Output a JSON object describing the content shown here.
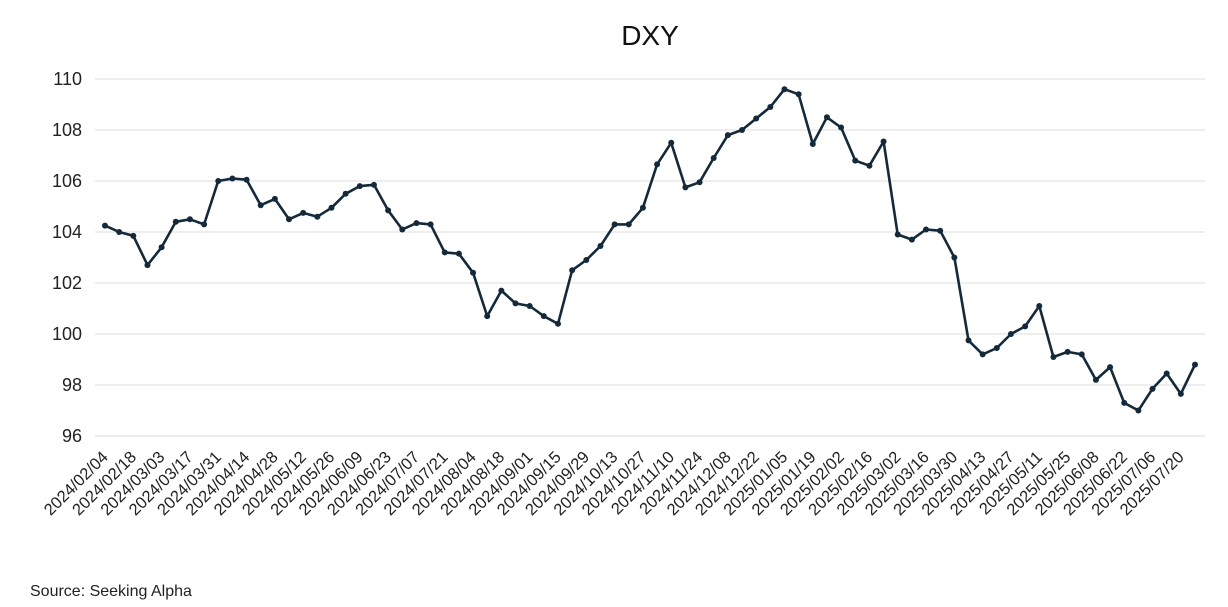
{
  "chart_data": {
    "type": "line",
    "title": "DXY",
    "source": "Source: Seeking Alpha",
    "xlabel": "",
    "ylabel": "",
    "ylim": [
      96,
      110
    ],
    "yticks": [
      96,
      98,
      100,
      102,
      104,
      106,
      108,
      110
    ],
    "grid": true,
    "line_color": "#14293a",
    "x": [
      "2024/02/04",
      "2024/02/11",
      "2024/02/18",
      "2024/02/25",
      "2024/03/03",
      "2024/03/10",
      "2024/03/17",
      "2024/03/24",
      "2024/03/31",
      "2024/04/07",
      "2024/04/14",
      "2024/04/21",
      "2024/04/28",
      "2024/05/05",
      "2024/05/12",
      "2024/05/19",
      "2024/05/26",
      "2024/06/02",
      "2024/06/09",
      "2024/06/16",
      "2024/06/23",
      "2024/06/30",
      "2024/07/07",
      "2024/07/14",
      "2024/07/21",
      "2024/07/28",
      "2024/08/04",
      "2024/08/11",
      "2024/08/18",
      "2024/08/25",
      "2024/09/01",
      "2024/09/08",
      "2024/09/15",
      "2024/09/22",
      "2024/09/29",
      "2024/10/06",
      "2024/10/13",
      "2024/10/20",
      "2024/10/27",
      "2024/11/03",
      "2024/11/10",
      "2024/11/17",
      "2024/11/24",
      "2024/12/01",
      "2024/12/08",
      "2024/12/15",
      "2024/12/22",
      "2024/12/29",
      "2025/01/05",
      "2025/01/12",
      "2025/01/19",
      "2025/01/26",
      "2025/02/02",
      "2025/02/09",
      "2025/02/16",
      "2025/02/23",
      "2025/03/02",
      "2025/03/09",
      "2025/03/16",
      "2025/03/23",
      "2025/03/30",
      "2025/04/06",
      "2025/04/13",
      "2025/04/20",
      "2025/04/27",
      "2025/05/04",
      "2025/05/11",
      "2025/05/18",
      "2025/05/25",
      "2025/06/01",
      "2025/06/08",
      "2025/06/15",
      "2025/06/22",
      "2025/06/29",
      "2025/07/06",
      "2025/07/13",
      "2025/07/20",
      "2025/07/27"
    ],
    "values": [
      104.25,
      104.0,
      103.85,
      102.7,
      103.4,
      104.4,
      104.5,
      104.3,
      106.0,
      106.1,
      106.05,
      105.05,
      105.3,
      104.5,
      104.75,
      104.6,
      104.95,
      105.5,
      105.8,
      105.85,
      104.85,
      104.1,
      104.35,
      104.3,
      103.2,
      103.15,
      102.4,
      100.7,
      101.7,
      101.2,
      101.1,
      100.7,
      100.4,
      102.5,
      102.9,
      103.45,
      104.3,
      104.3,
      104.95,
      106.65,
      107.5,
      105.75,
      105.95,
      106.9,
      107.8,
      108.0,
      108.45,
      108.9,
      109.6,
      109.4,
      107.45,
      108.5,
      108.1,
      106.8,
      106.6,
      107.55,
      103.9,
      103.7,
      104.1,
      104.05,
      103.0,
      99.75,
      99.2,
      99.45,
      100.0,
      100.3,
      101.1,
      99.1,
      99.3,
      99.2,
      98.2,
      98.7,
      97.3,
      97.0,
      97.85,
      98.45,
      97.65,
      98.8
    ],
    "xtick_labels": [
      "2024/02/04",
      "2024/02/18",
      "2024/03/03",
      "2024/03/17",
      "2024/03/31",
      "2024/04/14",
      "2024/04/28",
      "2024/05/12",
      "2024/05/26",
      "2024/06/09",
      "2024/06/23",
      "2024/07/07",
      "2024/07/21",
      "2024/08/04",
      "2024/08/18",
      "2024/09/01",
      "2024/09/15",
      "2024/09/29",
      "2024/10/13",
      "2024/10/27",
      "2024/11/10",
      "2024/11/24",
      "2024/12/08",
      "2024/12/22",
      "2025/01/05",
      "2025/01/19",
      "2025/02/02",
      "2025/02/16",
      "2025/03/02",
      "2025/03/16",
      "2025/03/30",
      "2025/04/13",
      "2025/04/27",
      "2025/05/11",
      "2025/05/25",
      "2025/06/08",
      "2025/06/22",
      "2025/07/06",
      "2025/07/20"
    ]
  }
}
